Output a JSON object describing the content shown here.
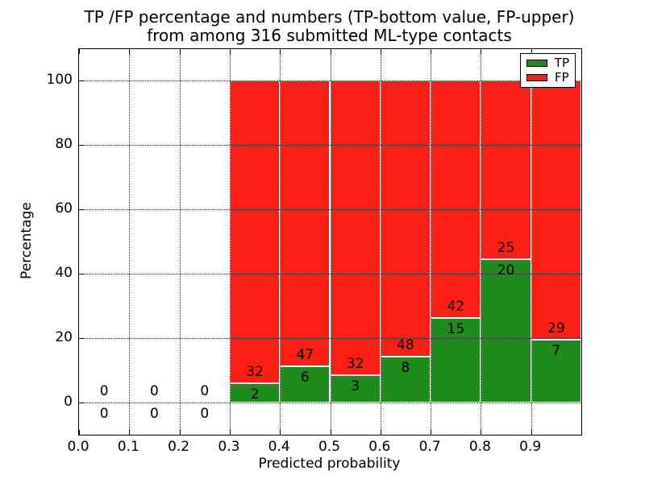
{
  "title": {
    "line1": "TP /FP percentage and numbers (TP-bottom value, FP-upper)",
    "line2": "from among 316 submitted ML-type contacts"
  },
  "axes": {
    "xlabel": "Predicted probability",
    "ylabel": "Percentage",
    "xtick_labels": [
      "0.0",
      "0.1",
      "0.2",
      "0.3",
      "0.4",
      "0.5",
      "0.6",
      "0.7",
      "0.8",
      "0.9"
    ],
    "ytick_labels": [
      "0",
      "20",
      "40",
      "60",
      "80",
      "100"
    ]
  },
  "chart_data": {
    "type": "bar",
    "stacked": true,
    "percent_normalized": true,
    "title": "TP /FP percentage and numbers (TP-bottom value, FP-upper)\nfrom among 316 submitted ML-type contacts",
    "xlabel": "Predicted probability",
    "ylabel": "Percentage",
    "xlim": [
      0.0,
      1.0
    ],
    "ylim": [
      -10,
      110
    ],
    "xticks": [
      0.0,
      0.1,
      0.2,
      0.3,
      0.4,
      0.5,
      0.6,
      0.7,
      0.8,
      0.9
    ],
    "yticks": [
      0,
      20,
      40,
      60,
      80,
      100
    ],
    "grid": true,
    "grid_style": "dotted",
    "grid_above_bars": true,
    "legend_position": "upper-right",
    "total_submitted": 316,
    "bin_edges": [
      0.0,
      0.1,
      0.2,
      0.3,
      0.4,
      0.5,
      0.6,
      0.7,
      0.8,
      0.9,
      1.0
    ],
    "series": [
      {
        "name": "TP",
        "color": "#1F8B1F",
        "counts": [
          0,
          0,
          0,
          2,
          6,
          3,
          8,
          15,
          20,
          7
        ]
      },
      {
        "name": "FP",
        "color": "#FB1E12",
        "counts": [
          0,
          0,
          0,
          32,
          47,
          32,
          48,
          42,
          25,
          29
        ]
      }
    ],
    "annotation_note": "FP count printed above the TP/FP boundary, TP count below it"
  }
}
